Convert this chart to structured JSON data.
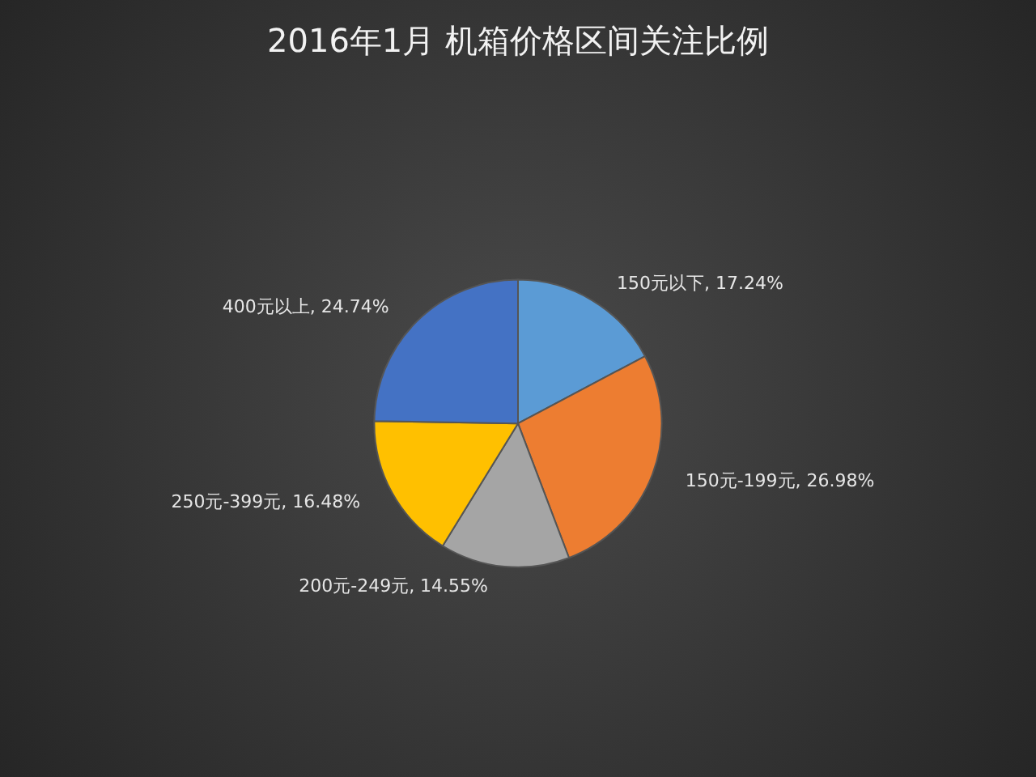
{
  "chart_data": {
    "type": "pie",
    "title": "2016年1月 机箱价格区间关注比例",
    "categories": [
      "150元以下",
      "150元-199元",
      "200元-249元",
      "250元-399元",
      "400元以上"
    ],
    "values": [
      17.24,
      26.98,
      14.55,
      16.48,
      24.74
    ],
    "value_labels": [
      "17.24%",
      "26.98%",
      "14.55%",
      "16.48%",
      "24.74%"
    ],
    "colors": [
      "#5b9bd5",
      "#ed7d31",
      "#a5a5a5",
      "#ffc000",
      "#4472c4"
    ],
    "legend": false
  }
}
